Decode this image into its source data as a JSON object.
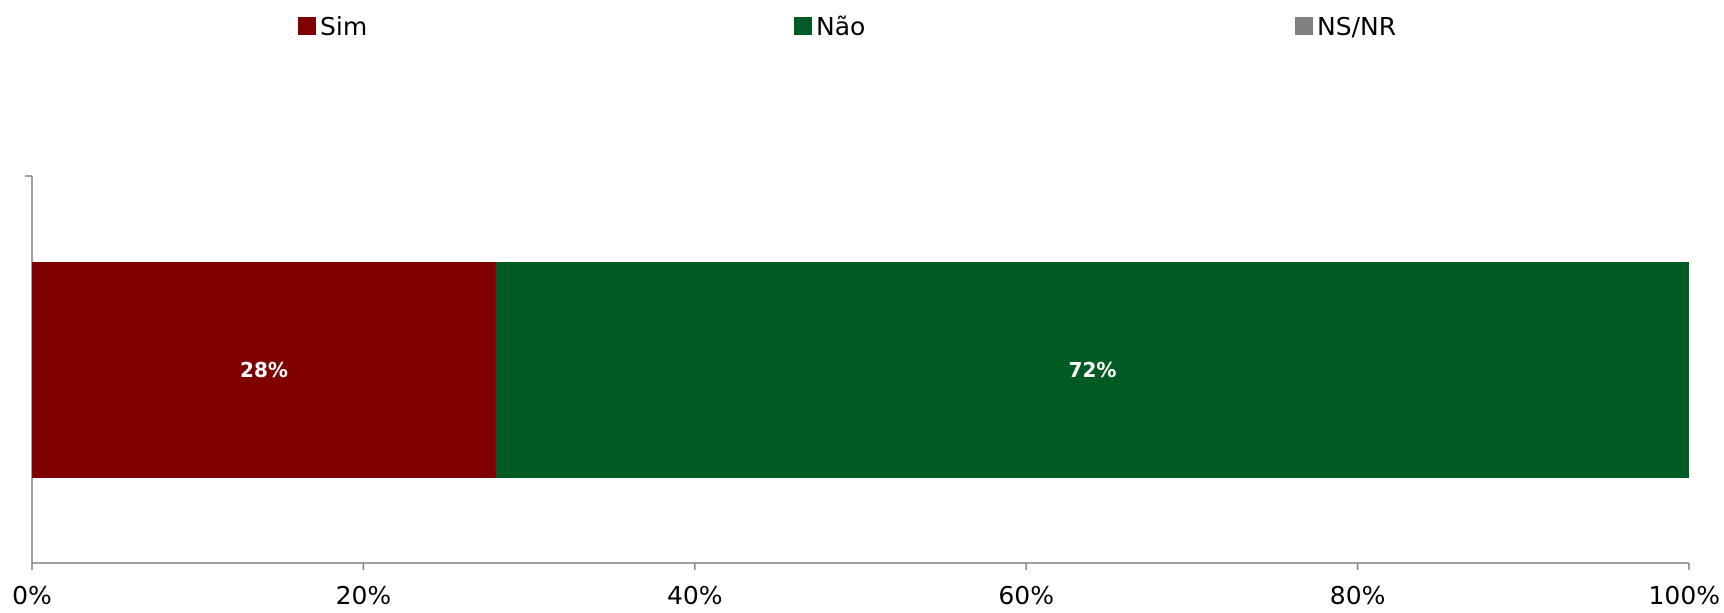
{
  "chart_data": {
    "type": "bar",
    "orientation": "horizontal",
    "stacked": true,
    "percent_stacked": true,
    "categories": [
      ""
    ],
    "series": [
      {
        "name": "Sim",
        "values": [
          28
        ],
        "color": "#800000",
        "data_label": "28%"
      },
      {
        "name": "Não",
        "values": [
          72
        ],
        "color": "#005a23",
        "data_label": "72%"
      },
      {
        "name": "NS/NR",
        "values": [
          0
        ],
        "color": "#808080",
        "data_label": ""
      }
    ],
    "x_ticks": [
      "0%",
      "20%",
      "40%",
      "60%",
      "80%",
      "100%"
    ],
    "xlim": [
      0,
      100
    ],
    "xlabel": "",
    "ylabel": "",
    "title": "",
    "legend_position": "top",
    "grid": false
  }
}
